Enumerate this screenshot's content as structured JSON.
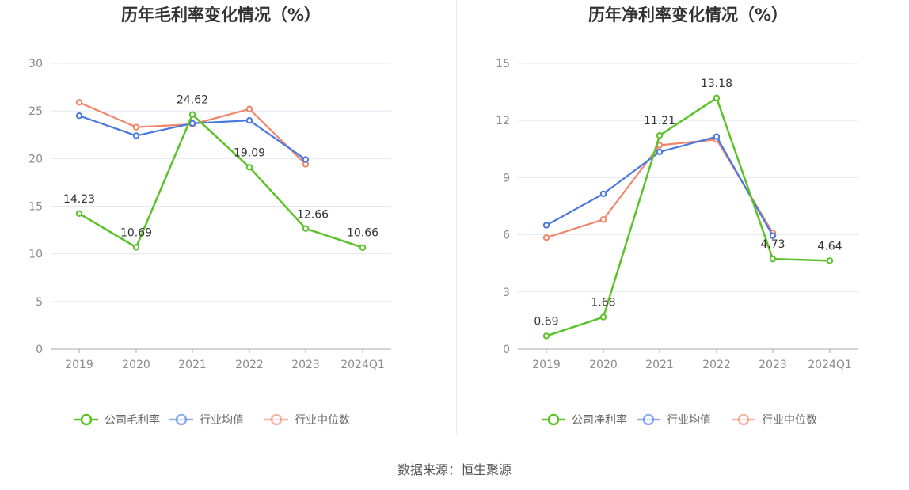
{
  "source_label": "数据来源：恒生聚源",
  "colors": {
    "company": "#5cc22a",
    "industry_avg": "#4a78e0",
    "industry_median": "#f0866a",
    "grid": "#e4e8f4",
    "axis": "#aaaaaa"
  },
  "chart_data": [
    {
      "type": "line",
      "title": "历年毛利率变化情况（%）",
      "categories": [
        "2019",
        "2020",
        "2021",
        "2022",
        "2023",
        "2024Q1"
      ],
      "ylim": [
        0,
        30
      ],
      "yticks": [
        0,
        5,
        10,
        15,
        20,
        25,
        30
      ],
      "grid": true,
      "legend_position": "bottom",
      "series": [
        {
          "name": "公司毛利率",
          "key": "company",
          "values": [
            14.23,
            10.69,
            24.62,
            19.09,
            12.66,
            10.66
          ],
          "data_labels": [
            "14.23",
            "10.69",
            "24.62",
            "19.09",
            "12.66",
            "10.66"
          ]
        },
        {
          "name": "行业均值",
          "key": "industry_avg",
          "values": [
            24.5,
            22.4,
            23.7,
            24.0,
            19.9,
            null
          ]
        },
        {
          "name": "行业中位数",
          "key": "industry_median",
          "values": [
            25.9,
            23.3,
            23.6,
            25.2,
            19.4,
            null
          ]
        }
      ]
    },
    {
      "type": "line",
      "title": "历年净利率变化情况（%）",
      "categories": [
        "2019",
        "2020",
        "2021",
        "2022",
        "2023",
        "2024Q1"
      ],
      "ylim": [
        0,
        15
      ],
      "yticks": [
        0,
        3,
        6,
        9,
        12,
        15
      ],
      "grid": true,
      "legend_position": "bottom",
      "series": [
        {
          "name": "公司净利率",
          "key": "company",
          "values": [
            0.69,
            1.68,
            11.21,
            13.18,
            4.73,
            4.64
          ],
          "data_labels": [
            "0.69",
            "1.68",
            "11.21",
            "13.18",
            "4.73",
            "4.64"
          ]
        },
        {
          "name": "行业均值",
          "key": "industry_avg",
          "values": [
            6.5,
            8.15,
            10.35,
            11.15,
            5.95,
            null
          ]
        },
        {
          "name": "行业中位数",
          "key": "industry_median",
          "values": [
            5.85,
            6.8,
            10.7,
            11.0,
            6.1,
            null
          ]
        }
      ]
    }
  ]
}
